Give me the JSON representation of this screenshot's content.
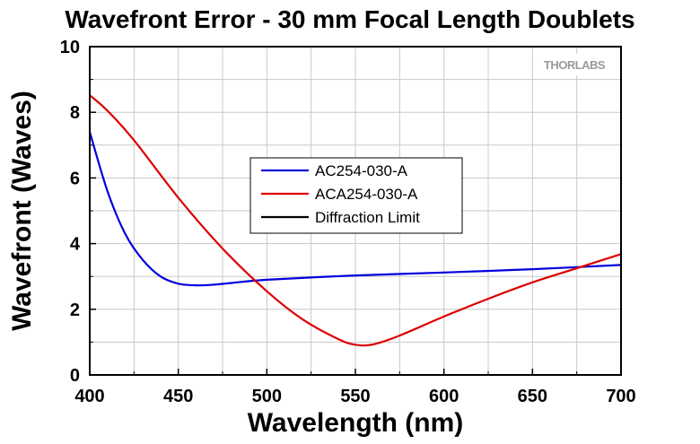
{
  "chart_data": {
    "type": "line",
    "title": "Wavefront Error - 30 mm Focal Length Doublets",
    "xlabel": "Wavelength (nm)",
    "ylabel": "Wavefront (Waves)",
    "xlim": [
      400,
      700
    ],
    "ylim": [
      0,
      10
    ],
    "x_ticks": [
      400,
      450,
      500,
      550,
      600,
      650,
      700
    ],
    "y_ticks": [
      0,
      2,
      4,
      6,
      8,
      10
    ],
    "grid": true,
    "legend_position": "center",
    "brand": "THORLABS",
    "series": [
      {
        "name": "AC254-030-A",
        "color": "#0000dd",
        "x": [
          400,
          410,
          420,
          430,
          440,
          450,
          460,
          470,
          480,
          500,
          550,
          600,
          650,
          700
        ],
        "y": [
          7.4,
          5.6,
          4.3,
          3.5,
          3.0,
          2.78,
          2.73,
          2.75,
          2.8,
          2.9,
          3.03,
          3.12,
          3.22,
          3.35
        ]
      },
      {
        "name": "ACA254-030-A",
        "color": "#dd0000",
        "x": [
          400,
          410,
          425,
          450,
          475,
          500,
          520,
          540,
          550,
          560,
          575,
          600,
          625,
          650,
          675,
          700
        ],
        "y": [
          8.52,
          8.05,
          7.15,
          5.4,
          3.85,
          2.55,
          1.7,
          1.1,
          0.92,
          0.93,
          1.2,
          1.78,
          2.32,
          2.82,
          3.25,
          3.68
        ]
      },
      {
        "name": "Diffraction Limit",
        "color": "#000000",
        "x": [],
        "y": []
      }
    ]
  }
}
